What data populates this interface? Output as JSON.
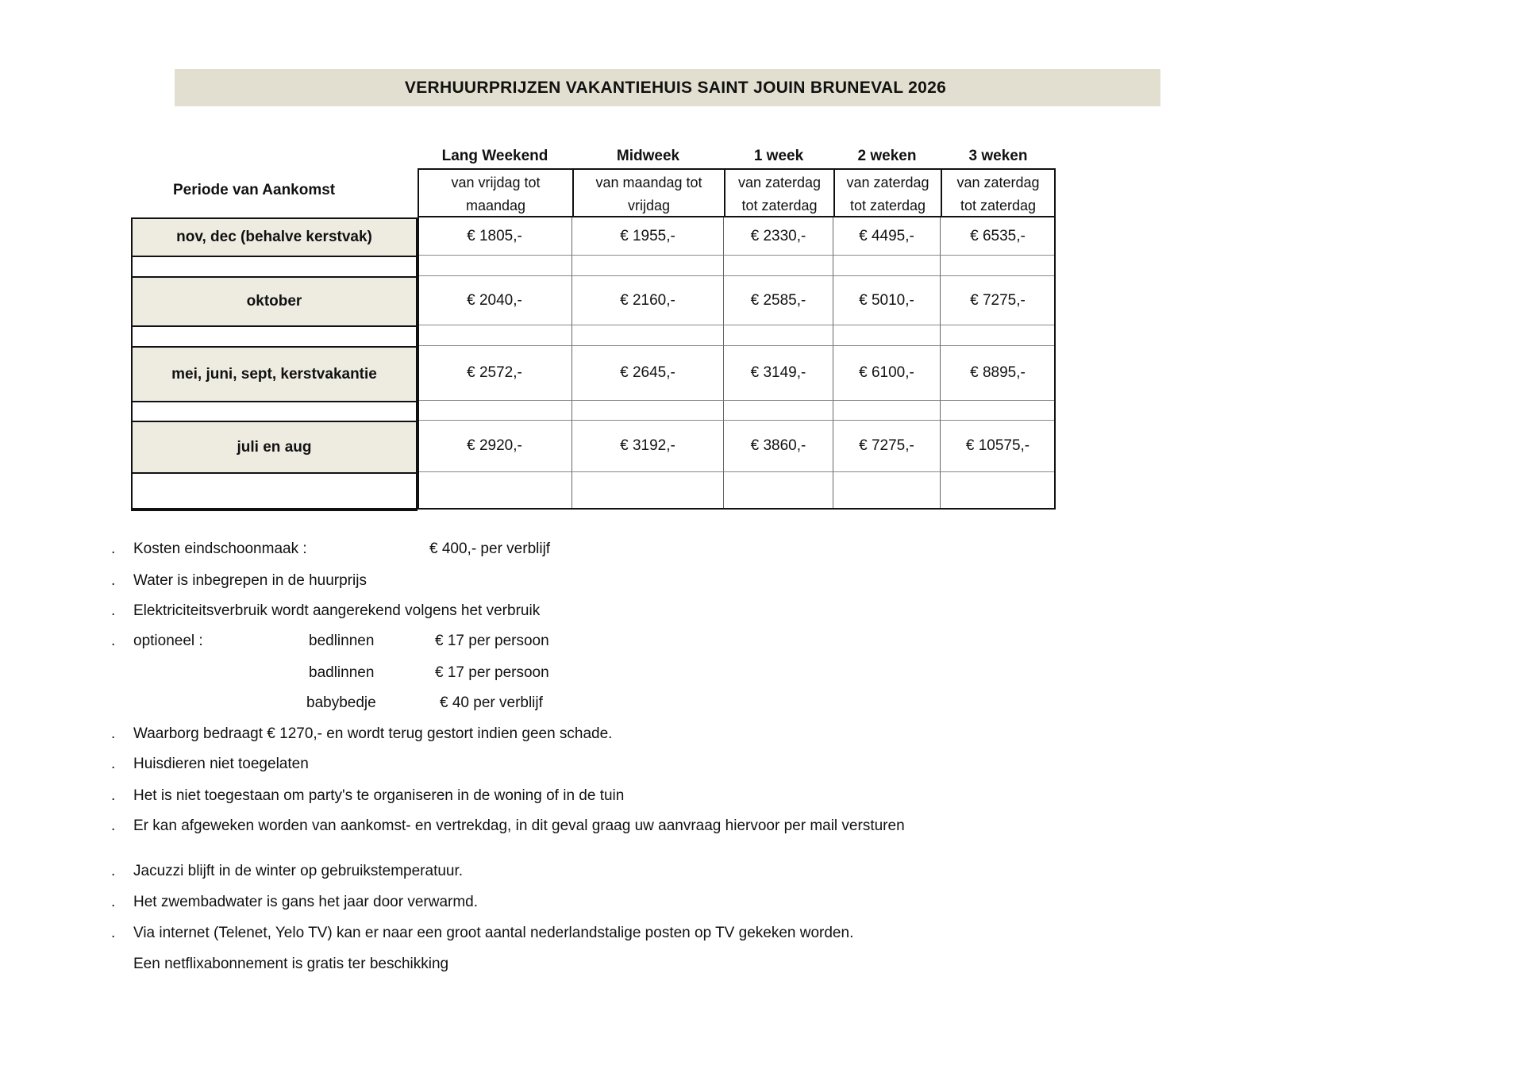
{
  "title": "VERHUURPRIJZEN  VAKANTIEHUIS  SAINT JOUIN BRUNEVAL  2026",
  "table": {
    "period_header": "Periode van Aankomst",
    "columns": [
      {
        "label": "Lang Weekend",
        "sub1": "van vrijdag tot",
        "sub2": "maandag"
      },
      {
        "label": "Midweek",
        "sub1": "van maandag tot",
        "sub2": "vrijdag"
      },
      {
        "label": "1 week",
        "sub1": "van zaterdag",
        "sub2": "tot zaterdag"
      },
      {
        "label": "2 weken",
        "sub1": "van zaterdag",
        "sub2": "tot zaterdag"
      },
      {
        "label": "3 weken",
        "sub1": "van zaterdag",
        "sub2": "tot zaterdag"
      }
    ],
    "rows": [
      {
        "period": "nov, dec (behalve kerstvak)",
        "prices": [
          "€ 1805,-",
          "€ 1955,-",
          "€ 2330,-",
          "€ 4495,-",
          "€ 6535,-"
        ]
      },
      {
        "period": "oktober",
        "prices": [
          "€ 2040,-",
          "€ 2160,-",
          "€ 2585,-",
          "€ 5010,-",
          "€ 7275,-"
        ]
      },
      {
        "period": "mei, juni, sept, kerstvakantie",
        "prices": [
          "€ 2572,-",
          "€ 2645,-",
          "€ 3149,-",
          "€ 6100,-",
          "€ 8895,-"
        ]
      },
      {
        "period": "juli en aug",
        "prices": [
          "€ 2920,-",
          "€ 3192,-",
          "€ 3860,-",
          "€ 7275,-",
          "€ 10575,-"
        ]
      }
    ]
  },
  "notes": {
    "bullet": ".",
    "cleaning_label": "Kosten eindschoonmaak :",
    "cleaning_value": "€ 400,- per verblijf",
    "water": "Water is inbegrepen in de huurprijs",
    "electricity": "Elektriciteitsverbruik wordt aangerekend volgens het verbruik",
    "optional_label": "optioneel :",
    "optional": [
      {
        "item": "bedlinnen",
        "price": "€ 17 per persoon"
      },
      {
        "item": "badlinnen",
        "price": "€ 17 per persoon"
      },
      {
        "item": "babybedje",
        "price": "€ 40 per verblijf"
      }
    ],
    "deposit": "Waarborg bedraagt € 1270,- en wordt terug gestort indien geen schade.",
    "pets": "Huisdieren niet toegelaten",
    "parties": "Het is niet toegestaan om party's te organiseren in de woning of in de tuin",
    "days": "Er kan afgeweken worden van aankomst- en vertrekdag, in dit geval graag uw aanvraag hiervoor per mail versturen",
    "jacuzzi": "Jacuzzi blijft in de winter op gebruikstemperatuur.",
    "pool": "Het zwembadwater is gans het jaar door verwarmd.",
    "tv": "Via internet (Telenet, Yelo TV) kan er naar een groot aantal nederlandstalige posten op TV gekeken worden.",
    "netflix": "Een netflixabonnement is gratis ter beschikking"
  },
  "colors": {
    "title_bg": "#e3dfd0",
    "period_bg": "#eeece1"
  }
}
